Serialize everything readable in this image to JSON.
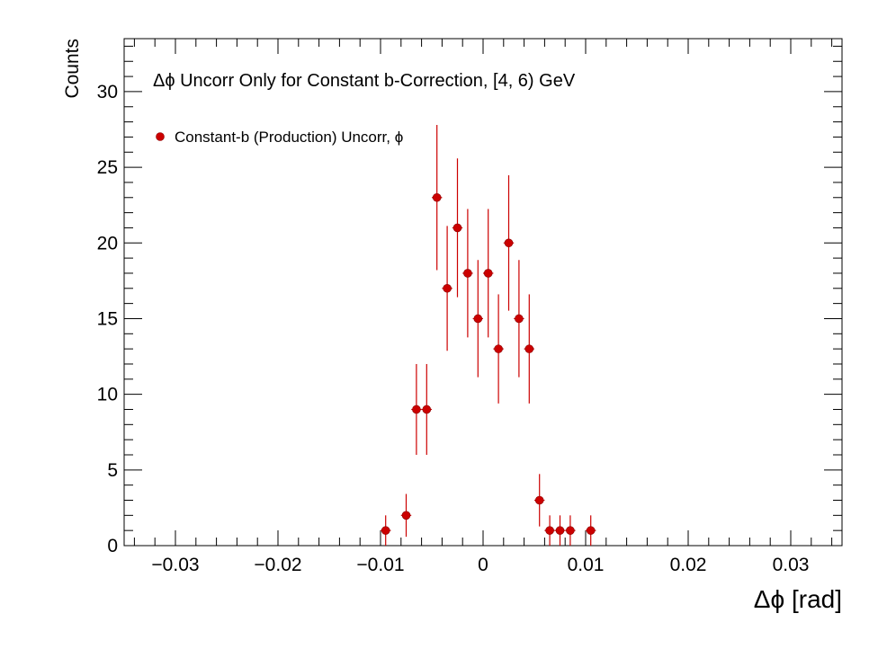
{
  "chart_data": {
    "type": "scatter",
    "title": "Δϕ Uncorr Only for Constant b-Correction, [4, 6) GeV",
    "xlabel": "Δϕ  [rad]",
    "ylabel": "Counts",
    "xlim": [
      -0.035,
      0.035
    ],
    "ylim": [
      0,
      33.5
    ],
    "x_ticks": [
      -0.03,
      -0.02,
      -0.01,
      0,
      0.01,
      0.02,
      0.03
    ],
    "x_tick_labels": [
      "−0.03",
      "−0.02",
      "−0.01",
      "0",
      "0.01",
      "0.02",
      "0.03"
    ],
    "y_ticks": [
      0,
      5,
      10,
      15,
      20,
      25,
      30
    ],
    "y_tick_labels": [
      "0",
      "5",
      "10",
      "15",
      "20",
      "25",
      "30"
    ],
    "grid": false,
    "legend_position": "top-left",
    "series": [
      {
        "name": "Constant-b (Production) Uncorr, ϕ",
        "color": "#cc0000",
        "x": [
          -0.0095,
          -0.0075,
          -0.0065,
          -0.0055,
          -0.0045,
          -0.0035,
          -0.0025,
          -0.0015,
          -0.0005,
          0.0005,
          0.0015,
          0.0025,
          0.0035,
          0.0045,
          0.0055,
          0.0065,
          0.0075,
          0.0085,
          0.0105
        ],
        "y": [
          1,
          2,
          9,
          9,
          23,
          17,
          21,
          18,
          15,
          18,
          13,
          20,
          15,
          13,
          3,
          1,
          1,
          1,
          1
        ]
      }
    ]
  }
}
